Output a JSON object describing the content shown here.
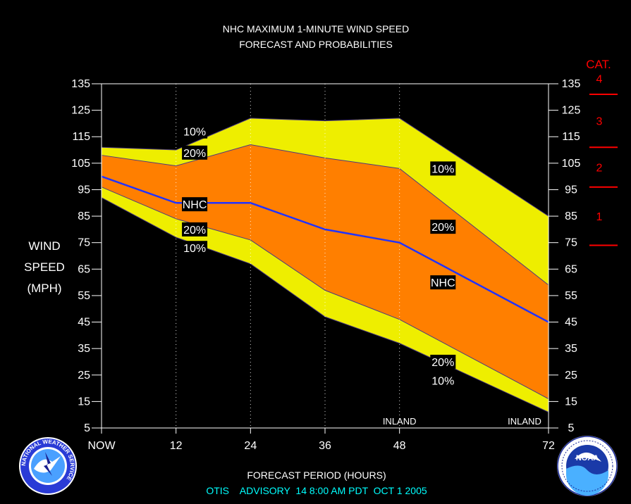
{
  "title_line1": "NHC MAXIMUM 1-MINUTE WIND SPEED",
  "title_line2": "FORECAST AND PROBABILITIES",
  "ylabel_lines": [
    "WIND",
    "SPEED",
    "(MPH)"
  ],
  "xlabel": "FORECAST PERIOD (HOURS)",
  "advisory": "OTIS    ADVISORY  14 8:00 AM PDT  OCT 1 2005",
  "category_title": "CAT.",
  "colors": {
    "background": "#000000",
    "band10": "#eeee00",
    "band20": "#ff7f00",
    "nhc_line": "#2233ff",
    "category": "#ff0000",
    "text": "#ffffff",
    "advisory": "#00ffff",
    "label_box": "#000000"
  },
  "chart_data": {
    "type": "area",
    "xlim": [
      0,
      72
    ],
    "ylim": [
      5,
      135
    ],
    "y_ticks": [
      5,
      15,
      25,
      35,
      45,
      55,
      65,
      75,
      85,
      95,
      105,
      115,
      125,
      135
    ],
    "x_ticks": [
      {
        "x": 0,
        "label": "NOW"
      },
      {
        "x": 12,
        "label": "12"
      },
      {
        "x": 24,
        "label": "24"
      },
      {
        "x": 36,
        "label": "36"
      },
      {
        "x": 48,
        "label": "48"
      },
      {
        "x": 72,
        "label": "72"
      }
    ],
    "vertical_grid": [
      12,
      24,
      36,
      48
    ],
    "x": [
      0,
      12,
      24,
      36,
      48,
      72
    ],
    "series": [
      {
        "key": "upper10",
        "values": [
          111,
          110,
          122,
          121,
          122,
          85
        ]
      },
      {
        "key": "upper20",
        "values": [
          108,
          104,
          112,
          107,
          103,
          59
        ]
      },
      {
        "key": "nhc",
        "values": [
          100,
          90,
          90,
          80,
          75,
          45
        ]
      },
      {
        "key": "lower20",
        "values": [
          96,
          84,
          76,
          57,
          46,
          16
        ]
      },
      {
        "key": "lower10",
        "values": [
          92,
          77,
          67,
          47,
          37,
          11
        ]
      }
    ],
    "band_labels": [
      {
        "text": "10%",
        "x": 15,
        "y": 117
      },
      {
        "text": "20%",
        "x": 15,
        "y": 109
      },
      {
        "text": "NHC",
        "x": 15,
        "y": 89.5
      },
      {
        "text": "20%",
        "x": 15,
        "y": 80
      },
      {
        "text": "10%",
        "x": 15,
        "y": 73
      },
      {
        "text": "10%",
        "x": 55,
        "y": 103
      },
      {
        "text": "20%",
        "x": 55,
        "y": 81
      },
      {
        "text": "NHC",
        "x": 55,
        "y": 60
      },
      {
        "text": "20%",
        "x": 55,
        "y": 30
      },
      {
        "text": "10%",
        "x": 55,
        "y": 23
      }
    ],
    "inland_labels": [
      {
        "text": "INLAND",
        "x": 48
      },
      {
        "text": "INLAND",
        "x": 72
      }
    ],
    "categories": [
      {
        "label": "4",
        "min": 131,
        "center": 137
      },
      {
        "label": "3",
        "min": 111,
        "center": 121
      },
      {
        "label": "2",
        "min": 96,
        "center": 103.5
      },
      {
        "label": "1",
        "min": 74,
        "center": 85
      }
    ]
  },
  "nws_logo_text": "NATIONAL WEATHER SERVICE",
  "noaa_logo_text": "NOAA"
}
